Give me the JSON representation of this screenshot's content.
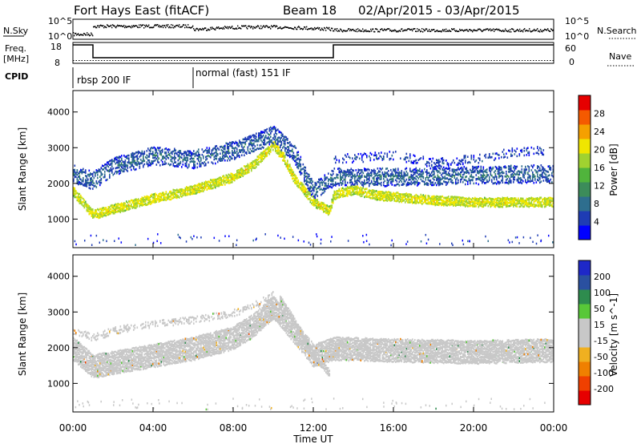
{
  "header": {
    "radar": "Fort Hays East (fitACF)",
    "beam": "Beam 18",
    "dates": "02/Apr/2015 - 03/Apr/2015"
  },
  "summary": {
    "nsky_label": "N.Sky",
    "nsky_ticks": [
      "10^5",
      "10^0"
    ],
    "nsearch_label": "N.Search",
    "freq_label_line1": "Freq.",
    "freq_label_line2": "[MHz]",
    "freq_ticks": [
      "18",
      "8"
    ],
    "nave_label": "Nave",
    "nave_ticks": [
      "60",
      "0"
    ],
    "cpid_label": "CPID",
    "modes": [
      {
        "name": "rbsp 200 IF",
        "start_hour": 0
      },
      {
        "name": "normal (fast) 151 IF",
        "start_hour": 6
      }
    ],
    "freq_steps_mhz": [
      {
        "start_hour": 0,
        "end_hour": 1,
        "freq": 18
      },
      {
        "start_hour": 1,
        "end_hour": 13,
        "freq": 10
      },
      {
        "start_hour": 13,
        "end_hour": 24,
        "freq": 18
      }
    ],
    "nave_level": 8
  },
  "chart_data": [
    {
      "type": "heatmap",
      "panel": "power",
      "ylabel": "Slant Range [km]",
      "yticks": [
        "4000",
        "3000",
        "2000",
        "1000"
      ],
      "ylim": [
        200,
        4600
      ],
      "xlim": [
        0,
        24
      ],
      "colorbar": {
        "label": "Power [dB]",
        "ticks": [
          "28",
          "24",
          "20",
          "16",
          "12",
          "8",
          "4"
        ],
        "range": [
          0,
          31
        ],
        "colors": [
          "#0000ff",
          "#1e3cb4",
          "#2e6e8e",
          "#3c8c5a",
          "#50b43c",
          "#a0d230",
          "#f0e600",
          "#f5a000",
          "#f55a00",
          "#e60000"
        ]
      },
      "bands": [
        {
          "name": "main",
          "ranges": [
            [
              0,
              1800
            ],
            [
              1,
              1150
            ],
            [
              2,
              1300
            ],
            [
              4,
              1600
            ],
            [
              6,
              1850
            ],
            [
              8,
              2200
            ],
            [
              9,
              2550
            ],
            [
              10,
              3100
            ],
            [
              10.5,
              2750
            ],
            [
              11,
              2200
            ],
            [
              12,
              1500
            ],
            [
              12.8,
              1250
            ],
            [
              13,
              1700
            ],
            [
              14,
              1850
            ],
            [
              15,
              1700
            ],
            [
              16,
              1650
            ],
            [
              18,
              1550
            ],
            [
              20,
              1500
            ],
            [
              22,
              1500
            ],
            [
              24,
              1500
            ]
          ],
          "width": 260,
          "level": 20,
          "density": 0.85
        },
        {
          "name": "upper",
          "ranges": [
            [
              0,
              2300
            ],
            [
              1,
              2100
            ],
            [
              2,
              2500
            ],
            [
              4,
              2800
            ],
            [
              6,
              2700
            ],
            [
              8,
              2950
            ],
            [
              9,
              3150
            ],
            [
              10,
              3400
            ],
            [
              11,
              2900
            ],
            [
              12,
              1800
            ],
            [
              13,
              2200
            ],
            [
              16,
              2200
            ],
            [
              20,
              2250
            ],
            [
              24,
              2300
            ]
          ],
          "width": 500,
          "level": 7,
          "density": 0.5
        },
        {
          "name": "high",
          "ranges": [
            [
              13,
              2700
            ],
            [
              16,
              2800
            ],
            [
              18,
              2600
            ],
            [
              20,
              2700
            ],
            [
              22,
              2900
            ],
            [
              23.5,
              2950
            ]
          ],
          "width": 250,
          "level": 4,
          "density": 0.25
        }
      ]
    },
    {
      "type": "heatmap",
      "panel": "velocity",
      "ylabel": "Slant Range [km]",
      "yticks": [
        "4000",
        "3000",
        "2000",
        "1000"
      ],
      "ylim": [
        200,
        4600
      ],
      "xlim": [
        0,
        24
      ],
      "colorbar": {
        "label": "Velocity [m s^-1]",
        "ticks": [
          "200",
          "100",
          "50",
          "15",
          "-15",
          "-50",
          "-100",
          "-200"
        ],
        "range": [
          -250,
          250
        ],
        "colors": [
          "#e60000",
          "#f04000",
          "#f08000",
          "#f0b020",
          "#c8c8c8",
          "#c8c8c8",
          "#58c838",
          "#2e8c4e",
          "#2a50a0",
          "#1e28c8"
        ]
      },
      "bands": [
        {
          "name": "ground",
          "ranges": [
            [
              0,
              2000
            ],
            [
              1,
              1500
            ],
            [
              2,
              1600
            ],
            [
              4,
              1800
            ],
            [
              6,
              2000
            ],
            [
              8,
              2300
            ],
            [
              9,
              2650
            ],
            [
              10,
              3150
            ],
            [
              11,
              2500
            ],
            [
              12,
              1800
            ],
            [
              13,
              2000
            ],
            [
              16,
              1950
            ],
            [
              20,
              1900
            ],
            [
              24,
              1950
            ]
          ],
          "width": 650,
          "velocity": 0,
          "density": 0.9
        },
        {
          "name": "slope",
          "ranges": [
            [
              10.3,
              3400
            ],
            [
              11,
              2800
            ],
            [
              12,
              1800
            ],
            [
              12.8,
              1300
            ]
          ],
          "width": 220,
          "velocity": 30,
          "density": 0.9
        },
        {
          "name": "orange",
          "ranges": [
            [
              0,
              2500
            ],
            [
              1,
              2300
            ],
            [
              2,
              2500
            ],
            [
              4,
              2700
            ],
            [
              6,
              2800
            ],
            [
              8,
              3000
            ],
            [
              9,
              3200
            ],
            [
              10,
              3500
            ]
          ],
          "width": 200,
          "velocity": -40,
          "density": 0.4
        }
      ]
    }
  ],
  "xaxis": {
    "ticks": [
      "00:00",
      "04:00",
      "08:00",
      "12:00",
      "16:00",
      "20:00",
      "00:00"
    ],
    "label": "Time UT"
  }
}
